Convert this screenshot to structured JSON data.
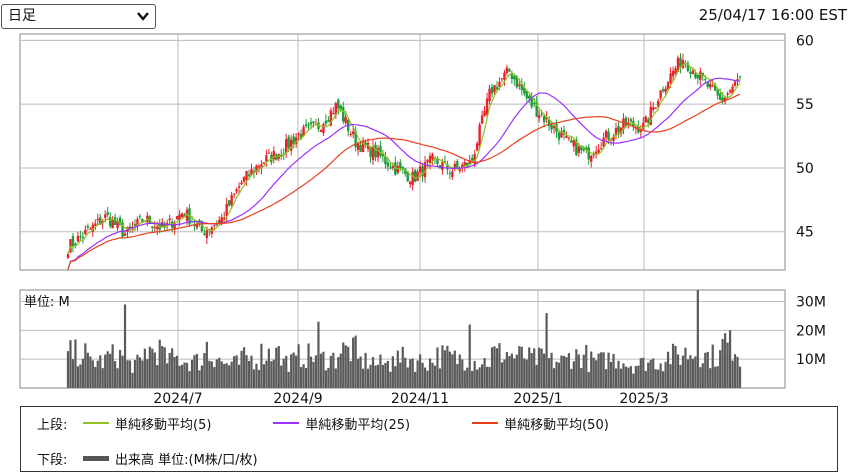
{
  "header": {
    "period_value": "日足",
    "timestamp": "25/04/17 16:00 EST"
  },
  "chart_data": {
    "type": "candlestick",
    "price_axis": {
      "ticks": [
        "60",
        "55",
        "50",
        "45"
      ],
      "ylim": [
        42,
        60.5
      ]
    },
    "volume_axis": {
      "unit_label": "単位: M",
      "ticks": [
        "30M",
        "20M",
        "10M"
      ],
      "ylim": [
        0,
        34
      ]
    },
    "x_ticks": [
      "2024/7",
      "2024/9",
      "2024/11",
      "2025/1",
      "2025/3"
    ],
    "colors": {
      "up": "#e8222a",
      "down": "#1a9e3a",
      "ma5": "#8fc31f",
      "ma25": "#9b30ff",
      "ma50": "#e8401c",
      "volume": "#5a5a5a"
    },
    "close_anchors": [
      43.8,
      45.0,
      46.2,
      44.8,
      46.0,
      45.2,
      46.6,
      45.0,
      46.0,
      48.8,
      50.4,
      51.2,
      52.6,
      53.2,
      54.9,
      52.0,
      51.2,
      50.0,
      49.2,
      50.6,
      49.8,
      50.4,
      56.0,
      57.6,
      55.2,
      53.6,
      52.0,
      51.0,
      52.4,
      53.4,
      53.2,
      56.4,
      58.6,
      57.0,
      55.2,
      57.0
    ],
    "volume_anchors": [
      13,
      10,
      12,
      9,
      14,
      11,
      10,
      12,
      9,
      11,
      13,
      10,
      12,
      11,
      14,
      10,
      9,
      11,
      10,
      12,
      11,
      10,
      13,
      12,
      11,
      10,
      12,
      10,
      11,
      9,
      10,
      12,
      13,
      12,
      16,
      9
    ],
    "volume_spikes": {
      "23": 29,
      "56": 16,
      "84": 14,
      "101": 23,
      "131": 11,
      "162": 22,
      "193": 26,
      "254": 34,
      "265": 19
    },
    "ma": [
      {
        "name": "単純移動平均(5)",
        "period": 5
      },
      {
        "name": "単純移動平均(25)",
        "period": 25
      },
      {
        "name": "単純移動平均(50)",
        "period": 50
      }
    ]
  },
  "legend": {
    "upper_label": "上段:",
    "lower_label": "下段:",
    "ma5": "単純移動平均(5)",
    "ma25": "単純移動平均(25)",
    "ma50": "単純移動平均(50)",
    "volume": "出来高 単位:(M株/口/枚)"
  }
}
